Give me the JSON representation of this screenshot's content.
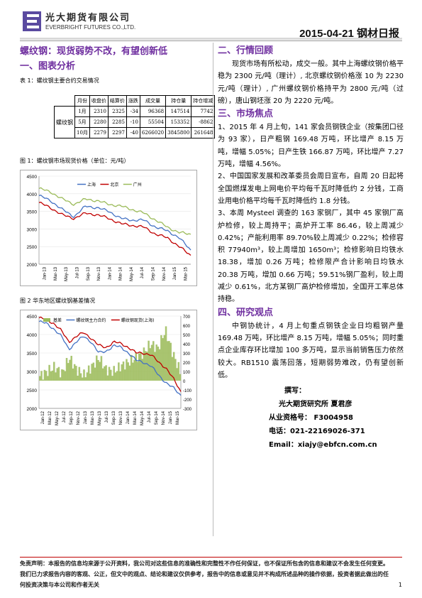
{
  "header": {
    "company_cn": "光大期货有限公司",
    "company_en": "EVERBRIGHT FUTURES CO.,LTD.",
    "date_title": "2015-04-21 钢材日报",
    "logo_color": "#5a4aa0"
  },
  "left": {
    "main_title": "螺纹钢：现货弱势不改，有望创新低",
    "sec1": "一、图表分析",
    "table_caption": "表 1：螺纹钢主要合约交易情况",
    "table": {
      "headers": [
        "月份",
        "收盘价",
        "结算价",
        "涨跌",
        "成交量",
        "持仓量",
        "持仓增减"
      ],
      "product": "螺纹钢",
      "rows": [
        [
          "1月",
          "2310",
          "2325",
          "-34",
          "96368",
          "147514",
          "7742"
        ],
        [
          "5月",
          "2280",
          "2285",
          "-10",
          "55504",
          "153352",
          "-8862"
        ],
        [
          "10月",
          "2279",
          "2297",
          "-40",
          "6266020",
          "3845800",
          "261648"
        ]
      ]
    },
    "fig1_caption": "图 1：螺纹钢市场现货价格（单位：元/吨）",
    "fig2_caption": "图 2 华东地区螺纹钢基差情况"
  },
  "chart_data": [
    {
      "type": "line",
      "title": "",
      "xlabel": "",
      "ylabel": "",
      "ylim": [
        2000,
        4500
      ],
      "yticks": [
        "4500",
        "4000",
        "3500",
        "3000",
        "2500",
        "2000"
      ],
      "x": [
        "Jan-13",
        "Mar-13",
        "May-13",
        "Jul-13",
        "Sep-13",
        "Nov-13",
        "Jan-14",
        "Mar-14",
        "May-14",
        "Jul-14",
        "Sep-14",
        "Nov-14",
        "Jan-15",
        "Mar-15"
      ],
      "legend_position": "top-center",
      "series": [
        {
          "name": "上海",
          "color": "#4472c4",
          "values": [
            3950,
            3800,
            3550,
            3350,
            3650,
            3600,
            3500,
            3300,
            3250,
            3250,
            3050,
            2950,
            2750,
            2400
          ]
        },
        {
          "name": "北京",
          "color": "#c00000",
          "values": [
            3750,
            3600,
            3400,
            3300,
            3450,
            3400,
            3300,
            3150,
            3100,
            3050,
            2850,
            2750,
            2500,
            2250
          ]
        },
        {
          "name": "广州",
          "color": "#9bbb59",
          "values": [
            4150,
            4050,
            3850,
            3700,
            3850,
            3800,
            3700,
            3650,
            3550,
            3450,
            3250,
            3050,
            2900,
            2850
          ]
        }
      ]
    },
    {
      "type": "line",
      "title": "",
      "xlabel": "",
      "ylabel": "",
      "ylim": [
        2000,
        4500
      ],
      "y2lim": [
        -300,
        700
      ],
      "yticks": [
        "4500",
        "4000",
        "3500",
        "3000",
        "2500",
        "2000"
      ],
      "y2ticks": [
        "700",
        "600",
        "500",
        "400",
        "300",
        "200",
        "100",
        "0",
        "-100",
        "-200",
        "-300"
      ],
      "x": [
        "Jan-12",
        "Mar-12",
        "May-12",
        "Jul-12",
        "Sep-12",
        "Nov-12",
        "Jan-13",
        "Mar-13",
        "May-13",
        "Jul-13",
        "Sep-13",
        "Nov-13",
        "Jan-14",
        "Mar-14",
        "May-14",
        "Jul-14",
        "Sep-14",
        "Nov-14",
        "Jan-15",
        "Mar-15"
      ],
      "legend_position": "top",
      "series": [
        {
          "name": "基差",
          "color": "#9bbb59",
          "kind": "area-right",
          "values": [
            50,
            100,
            150,
            80,
            250,
            120,
            60,
            150,
            250,
            120,
            100,
            160,
            200,
            250,
            300,
            400,
            350,
            550,
            300,
            100
          ]
        },
        {
          "name": "螺纹钢主力合约",
          "color": "#4472c4",
          "values": [
            4350,
            4300,
            4150,
            3950,
            3600,
            3800,
            3950,
            3800,
            3500,
            3550,
            3700,
            3650,
            3500,
            3300,
            3250,
            3150,
            2900,
            2700,
            2550,
            2350
          ]
        },
        {
          "name": "螺纹钢现货(上海)",
          "color": "#c00000",
          "values": [
            4450,
            4400,
            4300,
            4100,
            3800,
            3950,
            4050,
            3900,
            3700,
            3650,
            3800,
            3750,
            3650,
            3500,
            3500,
            3450,
            3250,
            3100,
            2800,
            2450
          ]
        }
      ]
    }
  ],
  "right": {
    "sec2": "二、行情回顾",
    "p_review": "现货市场有所松动，成交一般。其中上海螺纹钢价格平稳为 2300 元/吨（理计）, 北京螺纹钢价格涨 10 为 2230 元/吨（理计）, 广州螺纹钢价格持平为 2800 元/吨（过磅），唐山钢坯涨 20 为 2220 元/吨。",
    "sec3": "三、市场焦点",
    "p1": "1、2015 年 4 月上旬，141 家会员钢铁企业（按集团口径为 93 家），日产粗钢 169.48 万吨，环比增产 8.15 万吨，增幅 5.05%；日产生铁 166.87 万吨，环比增产 7.27 万吨，增幅 4.56%。",
    "p2": "2、中国国家发展和改革委员会周日宣布，自周 20 日起将全国燃煤发电上网电价平均每千瓦时降低约 2 分钱，工商业用电价格平均每千瓦时降低约 1.8 分钱。",
    "p3": "3、本周 Mysteel 调查的 163 家钢厂，其中 45 家钢厂高炉检修，较上周持平；高炉开工率 86.46，较上周减少 0.42%；产能利用率 89.70%较上周减少 0.22%；检修容积 77940m³，较上周增加 1650m³；检修影响日均铁水 18.38，增加 0.26 万吨；检修限产合计影响日均铁水 20.38 万吨，增加 0.66 万吨；59.51%钢厂盈利，较上周减少 0.61%，北方某钢厂高炉检修增加，全国开工率总体持稳。",
    "sec4": "四、研究观点",
    "p_view": "中钢协统计，4 月上旬重点钢铁企业日均粗钢产量 169.48 万吨，环比增产 8.15 万吨，增幅 5.05%；同时重点企业库存环比增加 100 多万吨，显示当前销售压力依然较大。RB1510 震荡回落，短期弱势难改，仍有望创新低。",
    "sig_title": "撰写：",
    "sig_org": "光大期货研究所 夏君彦",
    "sig_cert": "从业资格号： F3004958",
    "sig_tel": "电话：021-22169026-371",
    "sig_email": "Email：xiajy@ebfcn.com.cn"
  },
  "footer": {
    "disclaimer": "免责声明：本报告的信息均来源于公开资料，我公司对这些信息的准确性和完整性不作任何保证，也不保证所包含的信息和建议不会发生任何变更。我们已力求报告内容的客观、公正，但文中的观点、结论和建议仅供参考，报告中的信息或意见并不构成所述品种的操作依据，投资者据此做出的任何投资决策与本公司和作者无关",
    "page": "1"
  }
}
